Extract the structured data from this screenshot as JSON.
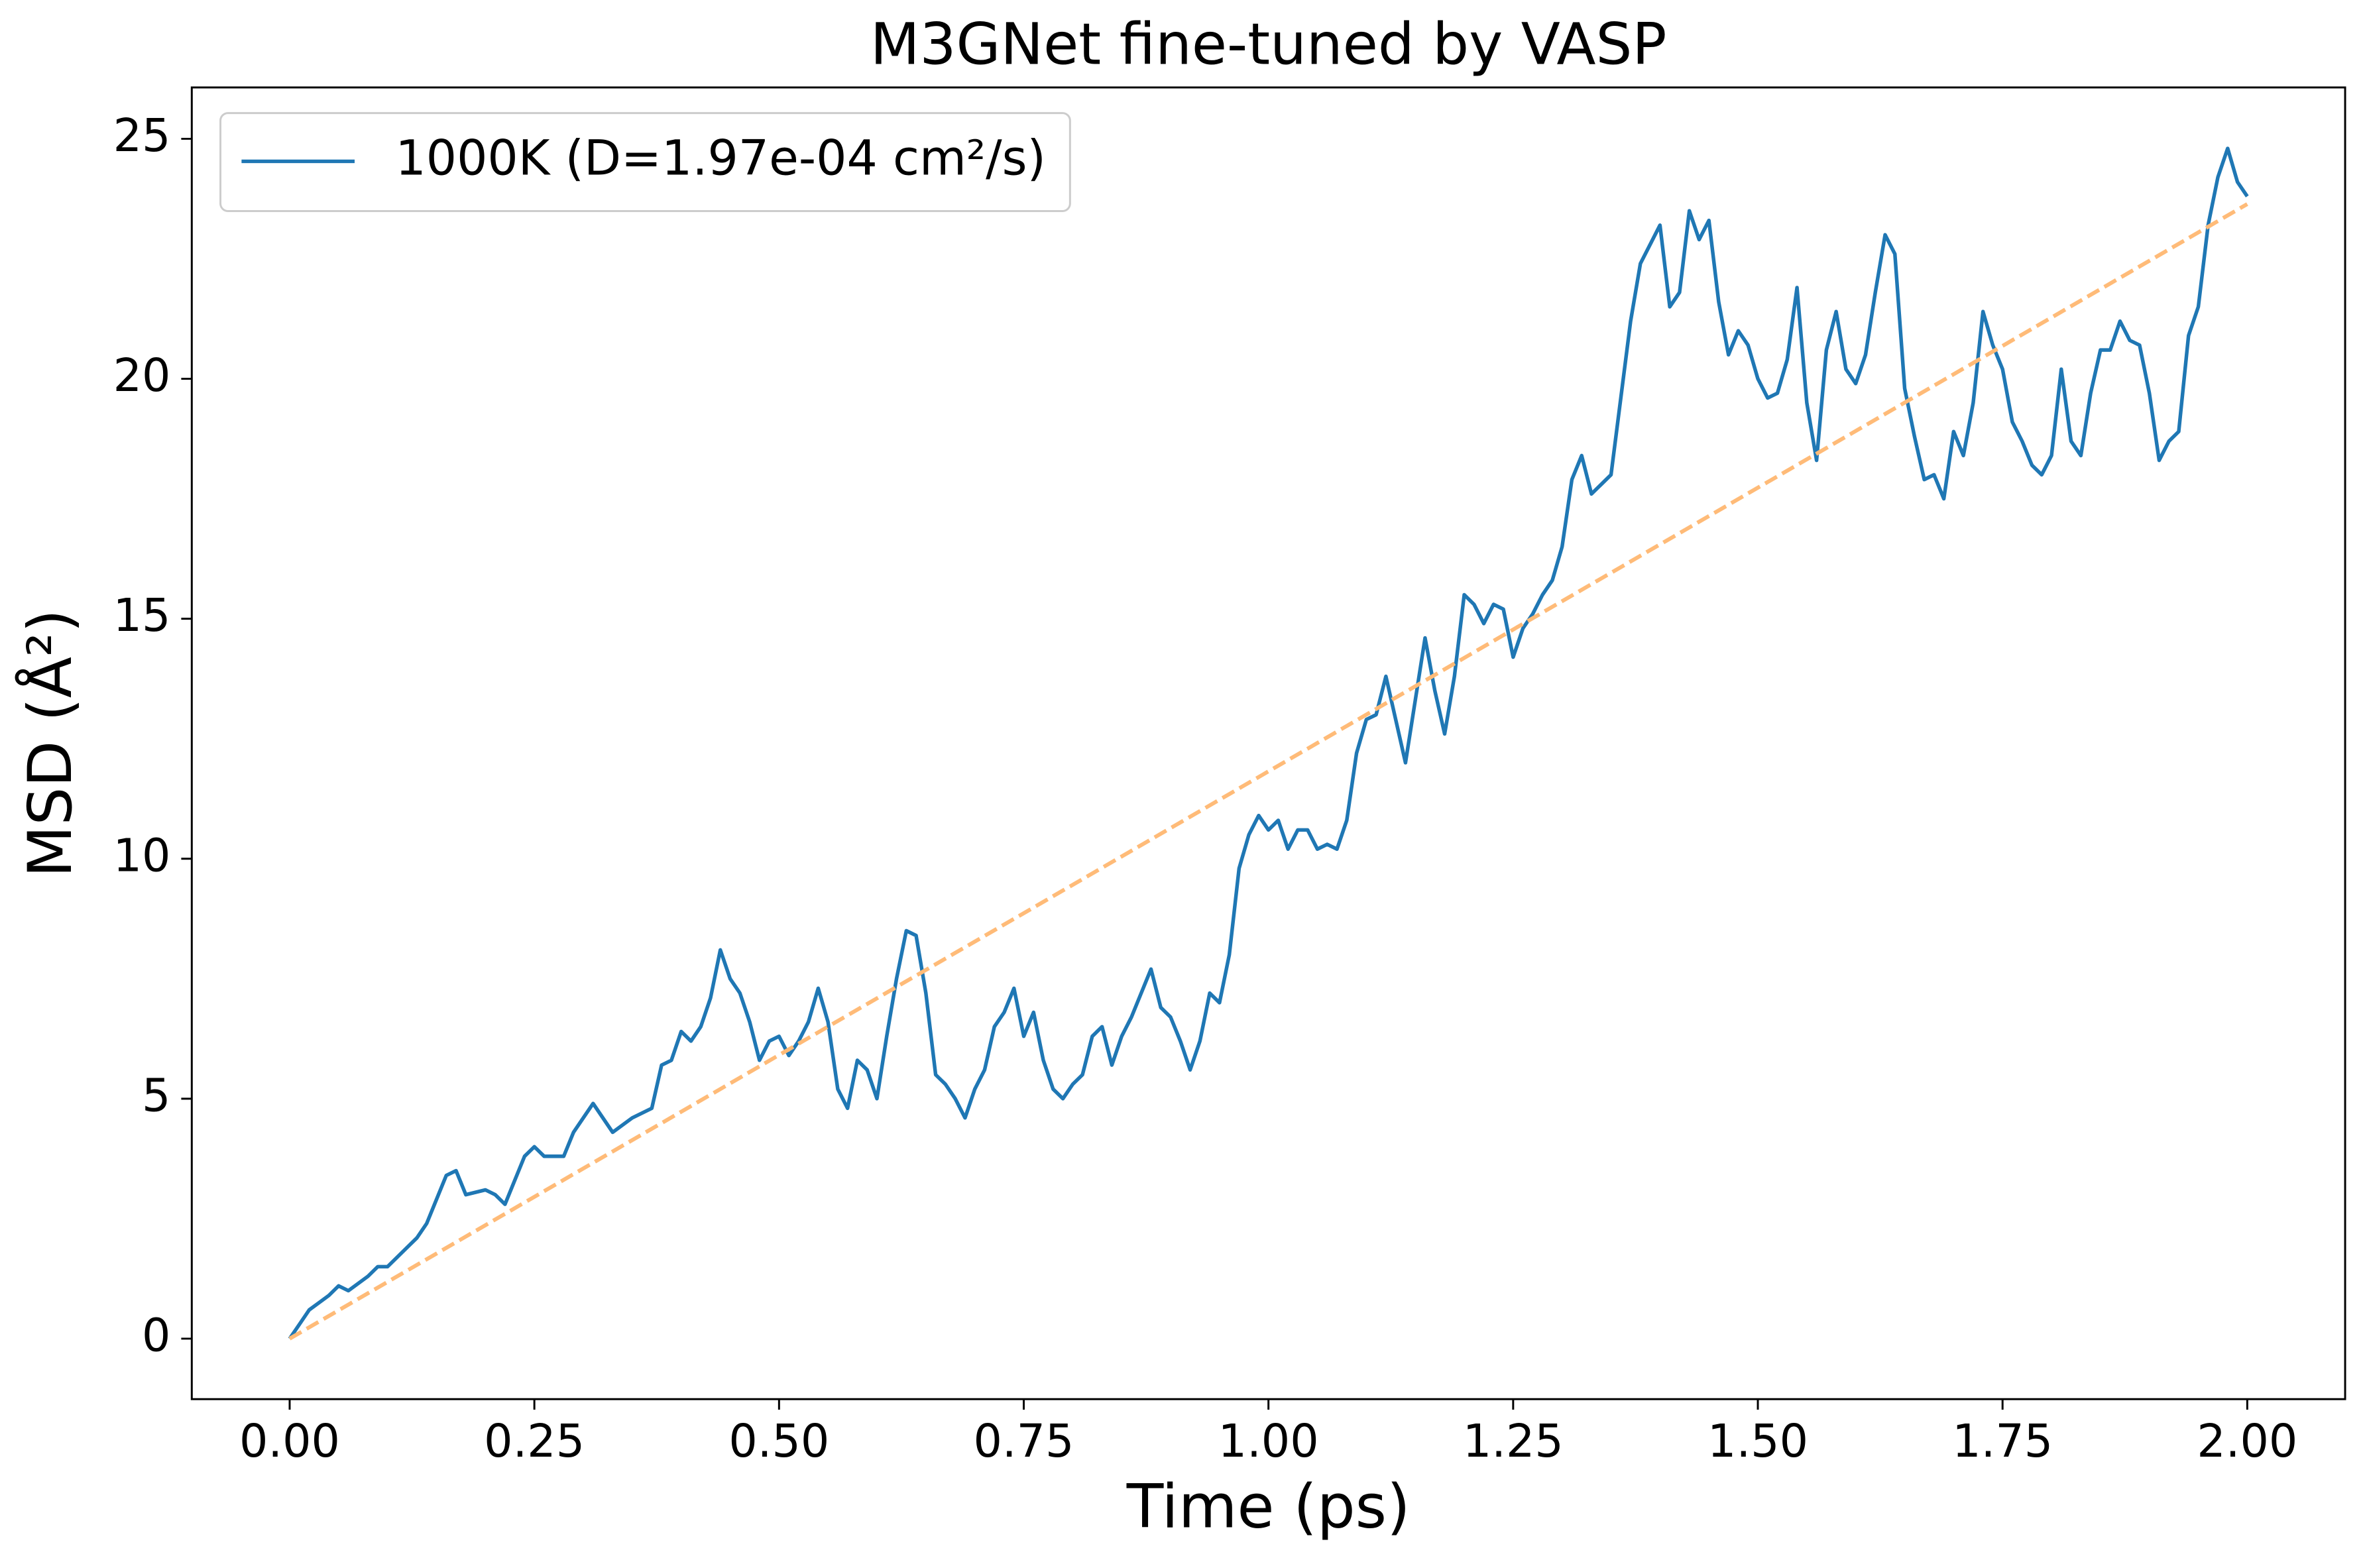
{
  "chart_data": {
    "type": "line",
    "title": "M3GNet fine-tuned by VASP",
    "xlabel": "Time (ps)",
    "ylabel": "MSD (Å²)",
    "xlim": [
      -0.1,
      2.1
    ],
    "ylim": [
      -1.26,
      26.07
    ],
    "xticks": [
      {
        "value": 0,
        "label": "0.00"
      },
      {
        "value": 0.25,
        "label": "0.25"
      },
      {
        "value": 0.5,
        "label": "0.50"
      },
      {
        "value": 0.75,
        "label": "0.75"
      },
      {
        "value": 1,
        "label": "1.00"
      },
      {
        "value": 1.25,
        "label": "1.25"
      },
      {
        "value": 1.5,
        "label": "1.50"
      },
      {
        "value": 1.75,
        "label": "1.75"
      },
      {
        "value": 2,
        "label": "2.00"
      }
    ],
    "yticks": [
      0,
      5,
      10,
      15,
      20,
      25
    ],
    "grid": false,
    "legend": "upper left",
    "x": [
      0,
      0.01,
      0.02,
      0.03,
      0.04,
      0.05,
      0.06,
      0.07,
      0.08,
      0.09,
      0.1,
      0.11,
      0.12,
      0.13,
      0.14,
      0.15,
      0.16,
      0.17,
      0.18,
      0.19,
      0.2,
      0.21,
      0.22,
      0.23,
      0.24,
      0.25,
      0.26,
      0.27,
      0.28,
      0.29,
      0.3,
      0.31,
      0.32,
      0.33,
      0.34,
      0.35,
      0.36,
      0.37,
      0.38,
      0.39,
      0.4,
      0.41,
      0.42,
      0.43,
      0.44,
      0.45,
      0.46,
      0.47,
      0.48,
      0.49,
      0.5,
      0.51,
      0.52,
      0.53,
      0.54,
      0.55,
      0.56,
      0.57,
      0.58,
      0.59,
      0.6,
      0.61,
      0.62,
      0.63,
      0.64,
      0.65,
      0.66,
      0.67,
      0.68,
      0.69,
      0.7,
      0.71,
      0.72,
      0.73,
      0.74,
      0.75,
      0.76,
      0.77,
      0.78,
      0.79,
      0.8,
      0.81,
      0.82,
      0.83,
      0.84,
      0.85,
      0.86,
      0.87,
      0.88,
      0.89,
      0.9,
      0.91,
      0.92,
      0.93,
      0.94,
      0.95,
      0.96,
      0.97,
      0.98,
      0.99,
      1,
      1.01,
      1.02,
      1.03,
      1.04,
      1.05,
      1.06,
      1.07,
      1.08,
      1.09,
      1.1,
      1.11,
      1.12,
      1.13,
      1.14,
      1.15,
      1.16,
      1.17,
      1.18,
      1.19,
      1.2,
      1.21,
      1.22,
      1.23,
      1.24,
      1.25,
      1.26,
      1.27,
      1.28,
      1.29,
      1.3,
      1.31,
      1.32,
      1.33,
      1.34,
      1.35,
      1.36,
      1.37,
      1.38,
      1.39,
      1.4,
      1.41,
      1.42,
      1.43,
      1.44,
      1.45,
      1.46,
      1.47,
      1.48,
      1.49,
      1.5,
      1.51,
      1.52,
      1.53,
      1.54,
      1.55,
      1.56,
      1.57,
      1.58,
      1.59,
      1.6,
      1.61,
      1.62,
      1.63,
      1.64,
      1.65,
      1.66,
      1.67,
      1.68,
      1.69,
      1.7,
      1.71,
      1.72,
      1.73,
      1.74,
      1.75,
      1.76,
      1.77,
      1.78,
      1.79,
      1.8,
      1.81,
      1.82,
      1.83,
      1.84,
      1.85,
      1.86,
      1.87,
      1.88,
      1.89,
      1.9,
      1.91,
      1.92,
      1.93,
      1.94,
      1.95,
      1.96,
      1.97,
      1.98,
      1.99,
      2
    ],
    "series": [
      {
        "name": "1000K (D=1.97e-04 cm²/s)",
        "color": "#1f77b4",
        "style": "solid",
        "values": [
          0,
          0.3,
          0.6,
          0.75,
          0.9,
          1.1,
          1.0,
          1.15,
          1.3,
          1.5,
          1.5,
          1.7,
          1.9,
          2.1,
          2.4,
          2.9,
          3.4,
          3.5,
          3.0,
          3.05,
          3.1,
          3.0,
          2.8,
          3.3,
          3.8,
          4.0,
          3.8,
          3.8,
          3.8,
          4.3,
          4.6,
          4.9,
          4.6,
          4.3,
          4.45,
          4.6,
          4.7,
          4.8,
          5.7,
          5.8,
          6.4,
          6.2,
          6.5,
          7.1,
          8.1,
          7.5,
          7.2,
          6.6,
          5.8,
          6.2,
          6.3,
          5.9,
          6.2,
          6.6,
          7.3,
          6.6,
          5.2,
          4.8,
          5.8,
          5.6,
          5.0,
          6.3,
          7.5,
          8.5,
          8.4,
          7.2,
          5.5,
          5.3,
          5.0,
          4.6,
          5.2,
          5.6,
          6.5,
          6.8,
          7.3,
          6.3,
          6.8,
          5.8,
          5.2,
          5.0,
          5.3,
          5.5,
          6.3,
          6.5,
          5.7,
          6.3,
          6.7,
          7.2,
          7.7,
          6.9,
          6.7,
          6.2,
          5.6,
          6.2,
          7.2,
          7.0,
          8.0,
          9.8,
          10.5,
          10.9,
          10.6,
          10.8,
          10.2,
          10.6,
          10.6,
          10.2,
          10.3,
          10.2,
          10.8,
          12.2,
          12.9,
          13.0,
          13.8,
          12.9,
          12.0,
          13.3,
          14.6,
          13.5,
          12.6,
          13.8,
          15.5,
          15.3,
          14.9,
          15.3,
          15.2,
          14.2,
          14.8,
          15.1,
          15.5,
          15.8,
          16.5,
          17.9,
          18.4,
          17.6,
          17.8,
          18.0,
          19.6,
          21.2,
          22.4,
          22.8,
          23.2,
          21.5,
          21.8,
          23.5,
          22.9,
          23.3,
          21.6,
          20.5,
          21.0,
          20.7,
          20.0,
          19.6,
          19.7,
          20.4,
          21.9,
          19.5,
          18.3,
          20.6,
          21.4,
          20.2,
          19.9,
          20.5,
          21.8,
          23.0,
          22.6,
          19.8,
          18.8,
          17.9,
          18.0,
          17.5,
          18.9,
          18.4,
          19.5,
          21.4,
          20.7,
          20.2,
          19.1,
          18.7,
          18.2,
          18.0,
          18.4,
          20.2,
          18.7,
          18.4,
          19.7,
          20.6,
          20.6,
          21.2,
          20.8,
          20.7,
          19.7,
          18.3,
          18.7,
          18.9,
          20.9,
          21.5,
          23.2,
          24.2,
          24.8,
          24.1,
          23.8
        ]
      },
      {
        "color": "#ffbb78",
        "style": "dashed",
        "x": [
          0,
          2
        ],
        "values": [
          0,
          23.64
        ]
      }
    ]
  }
}
